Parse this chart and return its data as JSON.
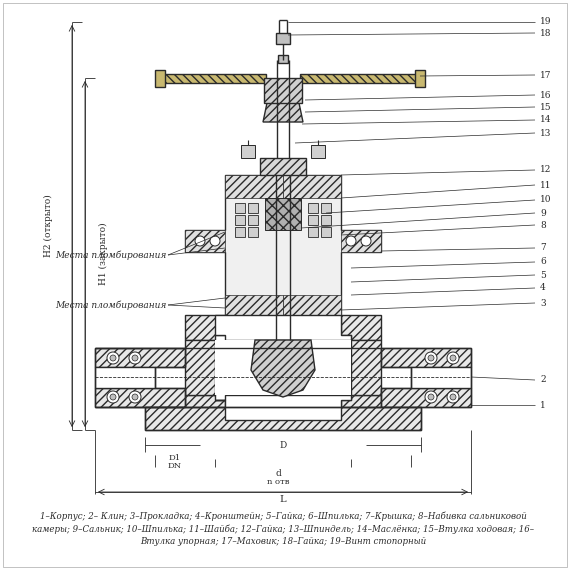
{
  "background_color": "#ffffff",
  "line_color": "#2a2a2a",
  "caption_lines": [
    "1–Корпус; 2– Клин; 3–Прокладка; 4–Кронштейн; 5–Гайка; 6–Шпилька; 7–Крышка; 8–Набивка сальниковой",
    "камеры; 9–Сальник; 10–Шпилька; 11–Шайба; 12–Гайка; 13–Шпиндель; 14–Маслёнка; 15–Втулка ходовая; 16–",
    "Втулка упорная; 17–Маховик; 18–Гайка; 19–Винт стопорный"
  ],
  "label_mesta1": "Места пломбирования",
  "label_mesta2": "Места пломбирования",
  "label_H1": "H1 (закрыто)",
  "label_H2": "H2 (открыто)",
  "label_D": "D",
  "label_D1": "D1",
  "label_DN": "DN",
  "label_d": "d",
  "label_n": "n отв",
  "label_L": "L",
  "fig_width": 5.7,
  "fig_height": 5.7,
  "dpi": 100
}
